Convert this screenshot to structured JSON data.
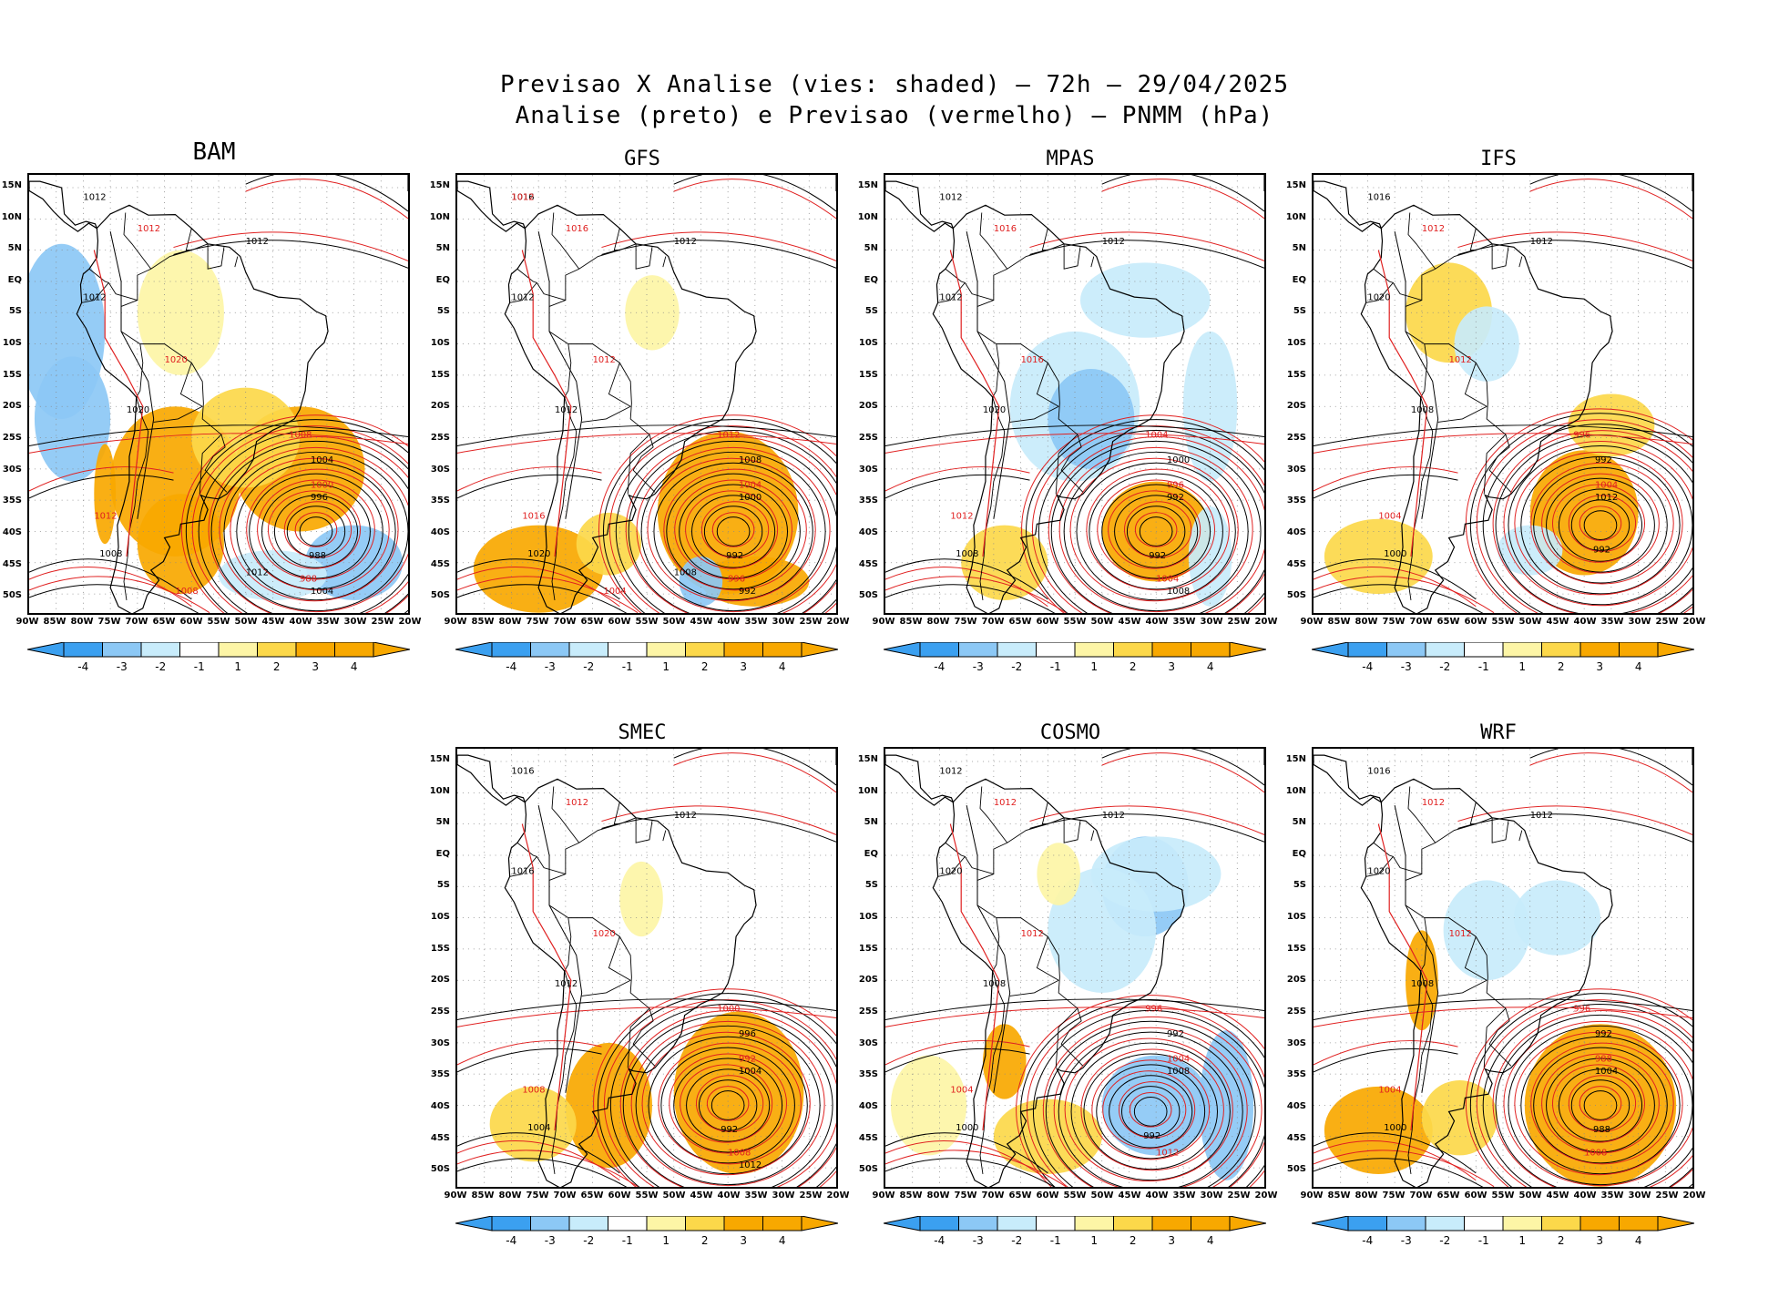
{
  "header": {
    "line1": "Previsao X Analise (vies: shaded) – 72h – 29/04/2025",
    "line2": "Analise (preto) e Previsao (vermelho) – PNMM (hPa)"
  },
  "colors": {
    "strong_neg": "#3ba0f0",
    "mid_neg": "#8cc8f5",
    "weak_neg": "#c8ecfb",
    "weak_pos": "#fdf5a6",
    "mid_pos": "#fcd84a",
    "strong_pos": "#f8a800",
    "analysis": "#000000",
    "forecast": "#e02020",
    "coast": "#000000"
  },
  "axes": {
    "lat_labels": [
      "15N",
      "10N",
      "5N",
      "EQ",
      "5S",
      "10S",
      "15S",
      "20S",
      "25S",
      "30S",
      "35S",
      "40S",
      "45S",
      "50S"
    ],
    "lon_labels": [
      "90W",
      "85W",
      "80W",
      "75W",
      "70W",
      "65W",
      "60W",
      "55W",
      "50W",
      "45W",
      "40W",
      "35W",
      "30W",
      "25W",
      "20W"
    ]
  },
  "colorbar": {
    "labels": [
      "-4",
      "-3",
      "-2",
      "-1",
      "1",
      "2",
      "3",
      "4"
    ]
  },
  "panels": [
    {
      "id": "bam",
      "name": "BAM",
      "contours": [
        "1012",
        "1012",
        "1012",
        "1016",
        "1012",
        "1020",
        "1020",
        "1012",
        "1008",
        "1008",
        "1004",
        "1000",
        "996",
        "988",
        "1004",
        "1008",
        "1012"
      ],
      "low_center": "988"
    },
    {
      "id": "gfs",
      "name": "GFS",
      "contours": [
        "1016",
        "1016",
        "1012",
        "1012",
        "1012",
        "1012",
        "1012",
        "1016",
        "1020",
        "1012",
        "1008",
        "1004",
        "1000",
        "996",
        "992",
        "1004",
        "1008",
        "1012"
      ],
      "low_center": "992"
    },
    {
      "id": "mpas",
      "name": "MPAS",
      "contours": [
        "1012",
        "1016",
        "1012",
        "1012",
        "1012",
        "1016",
        "1020",
        "1012",
        "1008",
        "1004",
        "1000",
        "996",
        "992",
        "1004",
        "1008"
      ],
      "low_center": "992"
    },
    {
      "id": "ifs",
      "name": "IFS",
      "contours": [
        "1016",
        "1012",
        "1012",
        "1012",
        "1020",
        "1012",
        "1008",
        "1004",
        "1000",
        "996",
        "992",
        "1004",
        "1012"
      ],
      "low_center": "992"
    },
    {
      "id": "smec",
      "name": "SMEC",
      "contours": [
        "1016",
        "1012",
        "1012",
        "1012",
        "1016",
        "1020",
        "1012",
        "1008",
        "1004",
        "1000",
        "996",
        "992",
        "1004",
        "1008",
        "1012"
      ],
      "low_center": "992"
    },
    {
      "id": "cosmo",
      "name": "COSMO",
      "contours": [
        "1012",
        "1012",
        "1012",
        "1016",
        "1020",
        "1012",
        "1008",
        "1004",
        "1000",
        "996",
        "992",
        "1004",
        "1008",
        "1012"
      ],
      "low_center": "992"
    },
    {
      "id": "wrf",
      "name": "WRF",
      "contours": [
        "1016",
        "1012",
        "1012",
        "1016",
        "1020",
        "1012",
        "1008",
        "1004",
        "1000",
        "996",
        "992",
        "988",
        "1004",
        "1008"
      ],
      "low_center": "988"
    }
  ]
}
